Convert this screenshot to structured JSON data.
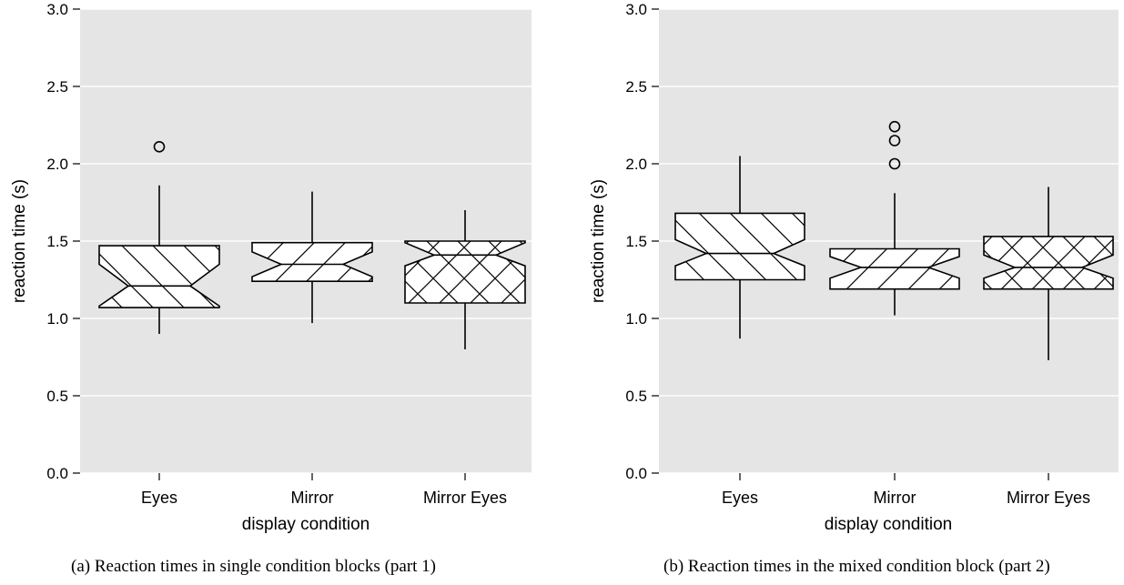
{
  "captions": {
    "a": "(a) Reaction times in single condition blocks (part 1)",
    "b": "(b) Reaction times in the mixed condition block (part 2)"
  },
  "chart_data": [
    {
      "type": "boxplot",
      "notched": true,
      "xlabel": "display condition",
      "ylabel": "reaction time (s)",
      "ylim": [
        0,
        3
      ],
      "yticks": [
        "0.0",
        "0.5",
        "1.0",
        "1.5",
        "2.0",
        "2.5",
        "3.0"
      ],
      "grid": true,
      "background": "#e5e5e5",
      "categories": [
        "Eyes",
        "Mirror",
        "Mirror Eyes"
      ],
      "boxes": [
        {
          "category": "Eyes",
          "min": 0.9,
          "q1": 1.07,
          "median": 1.21,
          "q3": 1.47,
          "max": 1.86,
          "notch_low": 1.08,
          "notch_high": 1.35,
          "outliers": [
            2.11
          ],
          "hatch": "backslash"
        },
        {
          "category": "Mirror",
          "min": 0.97,
          "q1": 1.24,
          "median": 1.35,
          "q3": 1.49,
          "max": 1.82,
          "notch_low": 1.27,
          "notch_high": 1.43,
          "outliers": [],
          "hatch": "slash"
        },
        {
          "category": "Mirror Eyes",
          "min": 0.8,
          "q1": 1.1,
          "median": 1.41,
          "q3": 1.5,
          "max": 1.7,
          "notch_low": 1.34,
          "notch_high": 1.49,
          "outliers": [],
          "hatch": "cross"
        }
      ]
    },
    {
      "type": "boxplot",
      "notched": true,
      "xlabel": "display condition",
      "ylabel": "reaction time (s)",
      "ylim": [
        0,
        3
      ],
      "yticks": [
        "0.0",
        "0.5",
        "1.0",
        "1.5",
        "2.0",
        "2.5",
        "3.0"
      ],
      "grid": true,
      "background": "#e5e5e5",
      "categories": [
        "Eyes",
        "Mirror",
        "Mirror Eyes"
      ],
      "boxes": [
        {
          "category": "Eyes",
          "min": 0.87,
          "q1": 1.25,
          "median": 1.42,
          "q3": 1.68,
          "max": 2.05,
          "notch_low": 1.34,
          "notch_high": 1.51,
          "outliers": [],
          "hatch": "backslash"
        },
        {
          "category": "Mirror",
          "min": 1.02,
          "q1": 1.19,
          "median": 1.33,
          "q3": 1.45,
          "max": 1.81,
          "notch_low": 1.26,
          "notch_high": 1.4,
          "outliers": [
            2.0,
            2.15,
            2.24
          ],
          "hatch": "slash"
        },
        {
          "category": "Mirror Eyes",
          "min": 0.73,
          "q1": 1.19,
          "median": 1.33,
          "q3": 1.53,
          "max": 1.85,
          "notch_low": 1.26,
          "notch_high": 1.41,
          "outliers": [],
          "hatch": "cross"
        }
      ]
    }
  ]
}
